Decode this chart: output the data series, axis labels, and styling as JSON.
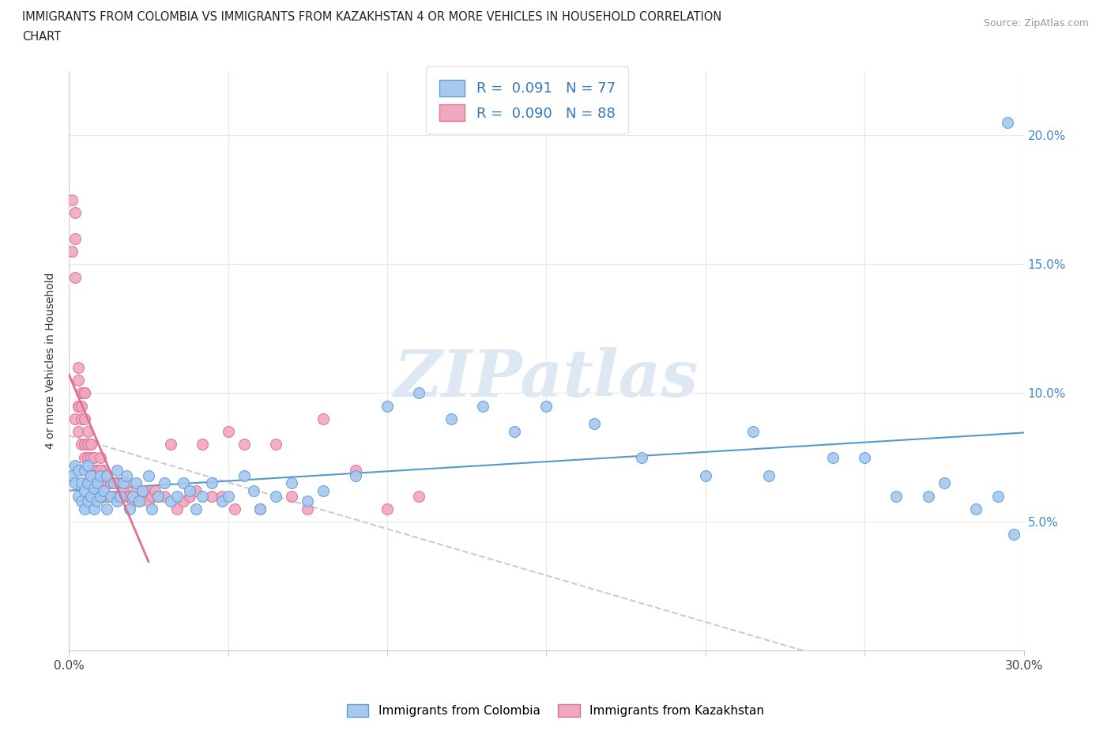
{
  "title_line1": "IMMIGRANTS FROM COLOMBIA VS IMMIGRANTS FROM KAZAKHSTAN 4 OR MORE VEHICLES IN HOUSEHOLD CORRELATION",
  "title_line2": "CHART",
  "source": "Source: ZipAtlas.com",
  "ylabel": "4 or more Vehicles in Household",
  "xlim": [
    0.0,
    0.3
  ],
  "ylim": [
    0.0,
    0.225
  ],
  "xticks": [
    0.0,
    0.05,
    0.1,
    0.15,
    0.2,
    0.25,
    0.3
  ],
  "yticks": [
    0.0,
    0.05,
    0.1,
    0.15,
    0.2
  ],
  "ytick_labels_right": [
    "",
    "5.0%",
    "10.0%",
    "15.0%",
    "20.0%"
  ],
  "color_colombia": "#a8c8f0",
  "color_kazakhstan": "#f0a8c0",
  "color_colombia_edge": "#5a9fd4",
  "color_kazakhstan_edge": "#e07090",
  "color_trendline_colombia": "#5599cc",
  "color_trendline_kazakhstan": "#cccccc",
  "R_colombia": "0.091",
  "N_colombia": "77",
  "R_kazakhstan": "0.090",
  "N_kazakhstan": "88",
  "watermark": "ZIPatlas",
  "colombia_x": [
    0.001,
    0.002,
    0.002,
    0.003,
    0.003,
    0.004,
    0.004,
    0.005,
    0.005,
    0.005,
    0.006,
    0.006,
    0.006,
    0.007,
    0.007,
    0.008,
    0.008,
    0.009,
    0.009,
    0.01,
    0.01,
    0.011,
    0.012,
    0.012,
    0.013,
    0.014,
    0.015,
    0.015,
    0.016,
    0.017,
    0.018,
    0.019,
    0.02,
    0.021,
    0.022,
    0.023,
    0.025,
    0.026,
    0.028,
    0.03,
    0.032,
    0.034,
    0.036,
    0.038,
    0.04,
    0.042,
    0.045,
    0.048,
    0.05,
    0.055,
    0.058,
    0.06,
    0.065,
    0.07,
    0.075,
    0.08,
    0.09,
    0.1,
    0.11,
    0.12,
    0.13,
    0.14,
    0.15,
    0.165,
    0.18,
    0.2,
    0.215,
    0.24,
    0.26,
    0.275,
    0.285,
    0.292,
    0.297,
    0.22,
    0.25,
    0.27,
    0.295
  ],
  "colombia_y": [
    0.068,
    0.065,
    0.072,
    0.06,
    0.07,
    0.058,
    0.065,
    0.055,
    0.062,
    0.07,
    0.058,
    0.065,
    0.072,
    0.06,
    0.068,
    0.055,
    0.063,
    0.058,
    0.065,
    0.06,
    0.068,
    0.062,
    0.055,
    0.068,
    0.06,
    0.065,
    0.058,
    0.07,
    0.06,
    0.065,
    0.068,
    0.055,
    0.06,
    0.065,
    0.058,
    0.062,
    0.068,
    0.055,
    0.06,
    0.065,
    0.058,
    0.06,
    0.065,
    0.062,
    0.055,
    0.06,
    0.065,
    0.058,
    0.06,
    0.068,
    0.062,
    0.055,
    0.06,
    0.065,
    0.058,
    0.062,
    0.068,
    0.095,
    0.1,
    0.09,
    0.095,
    0.085,
    0.095,
    0.088,
    0.075,
    0.068,
    0.085,
    0.075,
    0.06,
    0.065,
    0.055,
    0.06,
    0.045,
    0.068,
    0.075,
    0.06,
    0.205
  ],
  "kazakhstan_x": [
    0.001,
    0.001,
    0.002,
    0.002,
    0.002,
    0.003,
    0.003,
    0.003,
    0.003,
    0.004,
    0.004,
    0.004,
    0.005,
    0.005,
    0.005,
    0.005,
    0.006,
    0.006,
    0.006,
    0.006,
    0.007,
    0.007,
    0.007,
    0.007,
    0.008,
    0.008,
    0.008,
    0.009,
    0.009,
    0.009,
    0.01,
    0.01,
    0.01,
    0.011,
    0.011,
    0.011,
    0.012,
    0.012,
    0.013,
    0.013,
    0.014,
    0.014,
    0.015,
    0.015,
    0.016,
    0.016,
    0.017,
    0.018,
    0.018,
    0.019,
    0.02,
    0.021,
    0.022,
    0.023,
    0.024,
    0.025,
    0.026,
    0.027,
    0.028,
    0.03,
    0.032,
    0.034,
    0.036,
    0.038,
    0.04,
    0.042,
    0.045,
    0.048,
    0.05,
    0.052,
    0.055,
    0.06,
    0.065,
    0.07,
    0.075,
    0.08,
    0.09,
    0.1,
    0.11,
    0.002,
    0.003,
    0.004,
    0.005,
    0.006,
    0.007,
    0.008,
    0.009,
    0.01
  ],
  "kazakhstan_y": [
    0.155,
    0.175,
    0.145,
    0.16,
    0.09,
    0.095,
    0.105,
    0.085,
    0.11,
    0.08,
    0.09,
    0.1,
    0.075,
    0.08,
    0.09,
    0.1,
    0.065,
    0.07,
    0.075,
    0.085,
    0.065,
    0.07,
    0.075,
    0.08,
    0.065,
    0.07,
    0.075,
    0.06,
    0.065,
    0.07,
    0.06,
    0.065,
    0.075,
    0.06,
    0.065,
    0.07,
    0.06,
    0.065,
    0.06,
    0.065,
    0.06,
    0.065,
    0.06,
    0.065,
    0.06,
    0.065,
    0.062,
    0.06,
    0.065,
    0.06,
    0.058,
    0.062,
    0.058,
    0.06,
    0.062,
    0.058,
    0.06,
    0.062,
    0.06,
    0.06,
    0.08,
    0.055,
    0.058,
    0.06,
    0.062,
    0.08,
    0.06,
    0.06,
    0.085,
    0.055,
    0.08,
    0.055,
    0.08,
    0.06,
    0.055,
    0.09,
    0.07,
    0.055,
    0.06,
    0.17,
    0.095,
    0.095,
    0.1,
    0.08,
    0.08,
    0.068,
    0.062,
    0.07
  ]
}
